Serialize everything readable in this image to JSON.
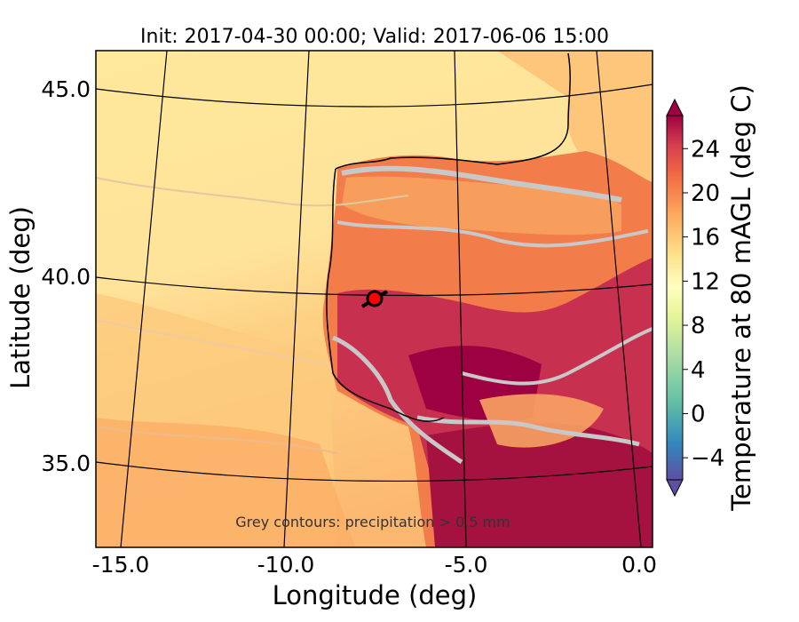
{
  "title": "Init: 2017-04-30 00:00; Valid: 2017-06-06 15:00",
  "xlabel": "Longitude (deg)",
  "ylabel": "Latitude (deg)",
  "x_ticks": [
    "-15.0",
    "-10.0",
    "-5.0",
    "0.0"
  ],
  "y_ticks": [
    "45.0",
    "40.0",
    "35.0"
  ],
  "colorbar": {
    "label": "Temperature at 80 mAGL (deg C)",
    "ticks": [
      "24",
      "20",
      "16",
      "12",
      "8",
      "4",
      "0",
      "−4"
    ],
    "tick_values": [
      24,
      20,
      16,
      12,
      8,
      4,
      0,
      -4
    ],
    "min": -6,
    "max": 27
  },
  "annotation": "Grey contours: precipitation > 0.5 mm",
  "marker": {
    "lon": -7.7,
    "lat": 39.3,
    "color": "#ff0000"
  },
  "colors": {
    "sea_warm": "#fee99a",
    "sea_mid": "#fdcf80",
    "land_hot": "#b2184b"
  }
}
